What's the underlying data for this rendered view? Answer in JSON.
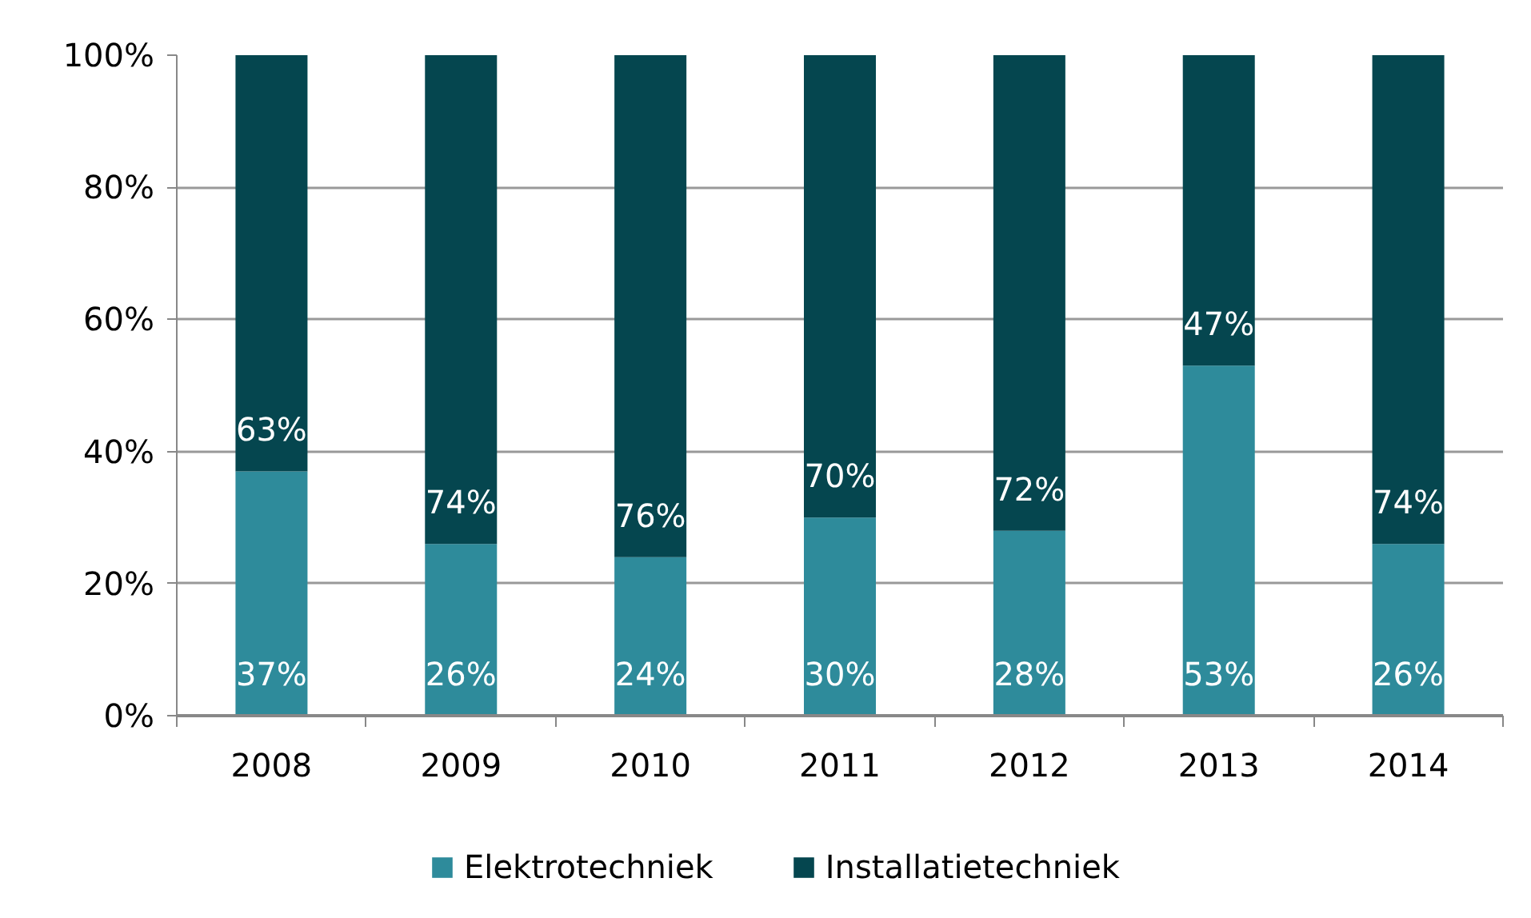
{
  "chart_data": {
    "type": "bar",
    "stacked": true,
    "categories": [
      "2008",
      "2009",
      "2010",
      "2011",
      "2012",
      "2013",
      "2014"
    ],
    "series": [
      {
        "name": "Elektrotechniek",
        "color": "#2e8b9b",
        "values": [
          37,
          26,
          24,
          30,
          28,
          53,
          26
        ],
        "value_labels": [
          "37%",
          "26%",
          "24%",
          "30%",
          "28%",
          "53%",
          "26%"
        ]
      },
      {
        "name": "Installatietechniek",
        "color": "#05464f",
        "values": [
          63,
          74,
          76,
          70,
          72,
          47,
          74
        ],
        "value_labels": [
          "63%",
          "74%",
          "76%",
          "70%",
          "72%",
          "47%",
          "74%"
        ]
      }
    ],
    "ylim": [
      0,
      100
    ],
    "yticks": [
      {
        "value": 0,
        "label": "0%"
      },
      {
        "value": 20,
        "label": "20%"
      },
      {
        "value": 40,
        "label": "40%"
      },
      {
        "value": 60,
        "label": "60%"
      },
      {
        "value": 80,
        "label": "80%"
      },
      {
        "value": 100,
        "label": "100%"
      }
    ],
    "grid": "y",
    "legend": "bottom"
  }
}
